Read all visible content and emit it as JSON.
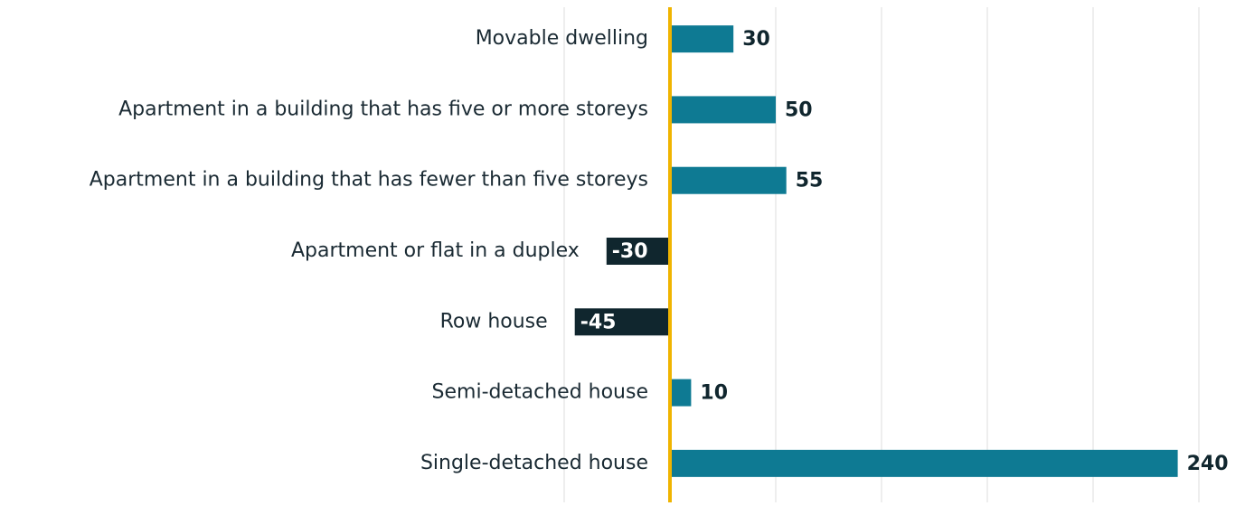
{
  "chart_data": {
    "type": "hbar",
    "categories": [
      "Movable dwelling",
      "Apartment in a building that has five or more storeys",
      "Apartment in a building that has fewer than five storeys",
      "Apartment or flat in a duplex",
      "Row house",
      "Semi-detached house",
      "Single-detached house"
    ],
    "values": [
      30,
      50,
      55,
      -30,
      -45,
      10,
      240
    ],
    "color": "#0e7a93",
    "negative_color": "#10262e",
    "zero_line_color": "#f0b400",
    "xlim": [
      -50,
      250
    ],
    "xticks": [
      -50,
      0,
      50,
      100,
      150,
      200,
      250
    ],
    "grid": true
  }
}
